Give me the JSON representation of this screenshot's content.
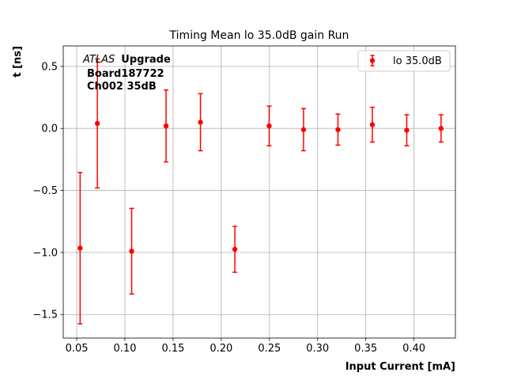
{
  "chart_data": {
    "type": "scatter",
    "title": "Timing Mean lo 35.0dB gain Run",
    "xlabel": "Input Current [mA]",
    "ylabel": "t [ns]",
    "xlim": [
      0.036,
      0.443
    ],
    "ylim": [
      -1.69,
      0.665
    ],
    "xticks": [
      0.05,
      0.1,
      0.15,
      0.2,
      0.25,
      0.3,
      0.35,
      0.4
    ],
    "xtick_labels": [
      "0.05",
      "0.10",
      "0.15",
      "0.20",
      "0.25",
      "0.30",
      "0.35",
      "0.40"
    ],
    "yticks": [
      -1.5,
      -1.0,
      -0.5,
      0.0,
      0.5
    ],
    "ytick_labels": [
      "−1.5",
      "−1.0",
      "−0.5",
      "0.0",
      "0.5"
    ],
    "grid": true,
    "legend_position": "upper right",
    "annotation": {
      "atlas": "ATLAS",
      "upgrade": "Upgrade",
      "line2": "Board187722",
      "line3": "Ch002 35dB"
    },
    "series": [
      {
        "name": "lo 35.0dB",
        "color": "#ff0000",
        "marker": "circle",
        "x": [
          0.0535,
          0.0714,
          0.107,
          0.1427,
          0.1784,
          0.2141,
          0.2497,
          0.2854,
          0.3211,
          0.3568,
          0.3925,
          0.4281
        ],
        "y": [
          -0.965,
          0.04,
          -0.99,
          0.02,
          0.05,
          -0.975,
          0.02,
          -0.01,
          -0.01,
          0.03,
          -0.015,
          0.0
        ],
        "yerr": [
          0.61,
          0.52,
          0.345,
          0.29,
          0.23,
          0.185,
          0.16,
          0.17,
          0.125,
          0.14,
          0.125,
          0.11
        ]
      }
    ]
  }
}
